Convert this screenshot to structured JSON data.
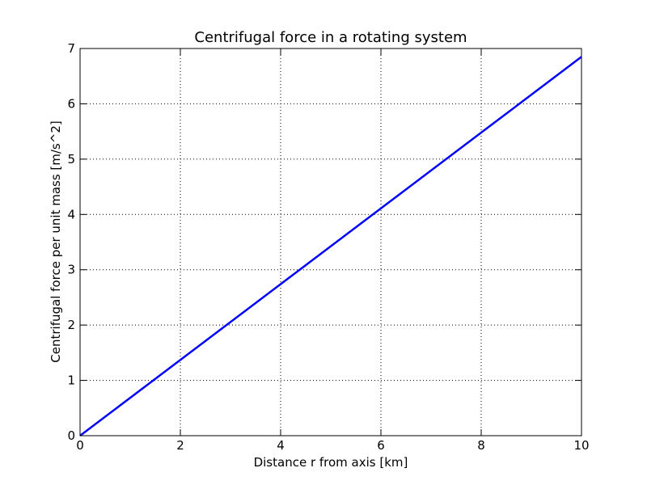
{
  "chart_data": {
    "type": "line",
    "title": "Centrifugal force in a rotating system",
    "x_label": "Distance r from axis [km]",
    "y_label": "Centrifugal force per unit mass [m/s^2]",
    "x": [
      0,
      2,
      4,
      6,
      8,
      10
    ],
    "series": [
      {
        "name": "Centrifugal force",
        "color": "#0000ff",
        "values": [
          0,
          1.37,
          2.74,
          4.11,
          5.48,
          6.85
        ]
      }
    ],
    "xlim": [
      0,
      10
    ],
    "ylim": [
      0,
      7
    ],
    "xticks": [
      0,
      2,
      4,
      6,
      8,
      10
    ],
    "yticks": [
      0,
      1,
      2,
      3,
      4,
      5,
      6,
      7
    ],
    "grid": true
  }
}
